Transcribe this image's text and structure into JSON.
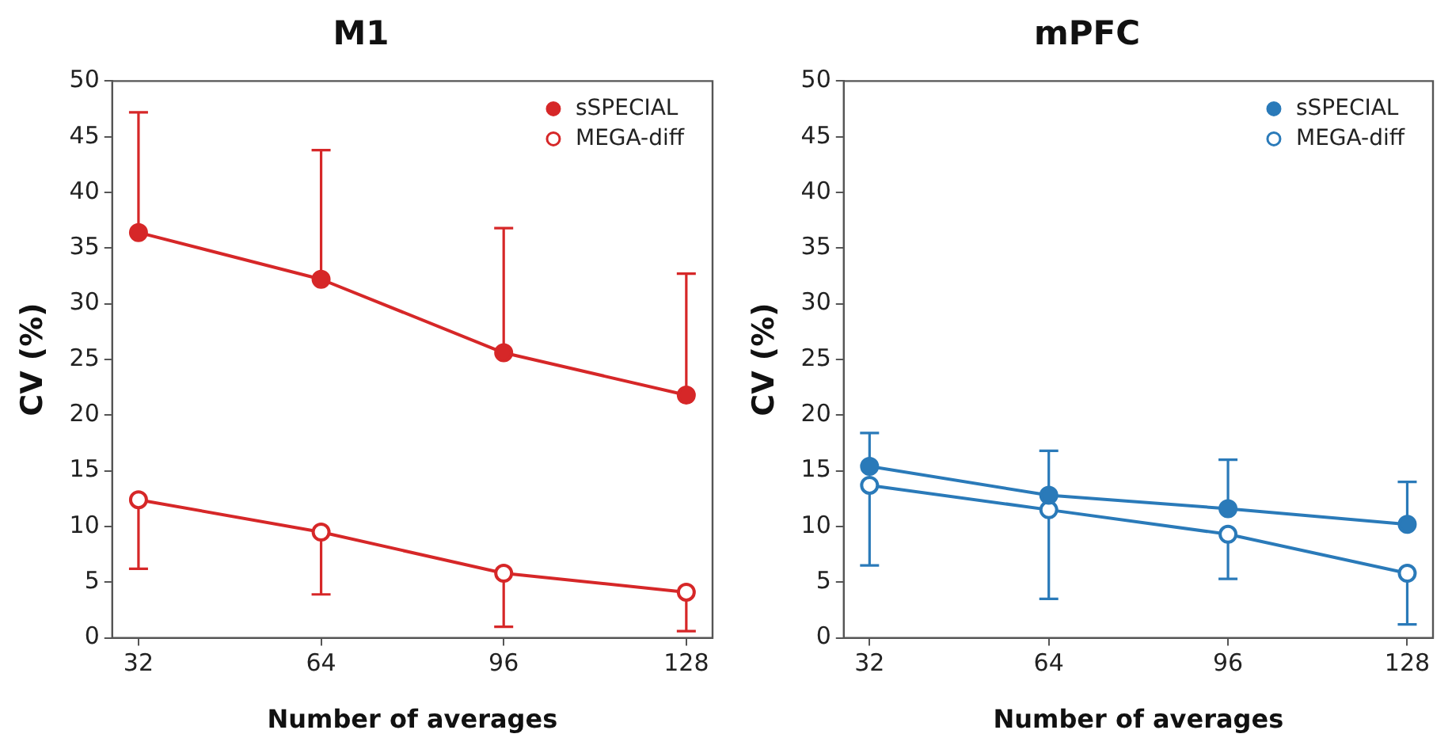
{
  "chart_data": [
    {
      "type": "line",
      "title": "M1",
      "xlabel": "Number of averages",
      "ylabel": "CV (%)",
      "x": [
        32,
        64,
        96,
        128
      ],
      "xlim": [
        27.4,
        132.6
      ],
      "xticks": [
        32,
        64,
        96,
        128
      ],
      "ylim": [
        0,
        50
      ],
      "yticks": [
        0,
        5,
        10,
        15,
        20,
        25,
        30,
        35,
        40,
        45,
        50
      ],
      "grid": false,
      "legend": "top right",
      "marker": "circle",
      "line_style": "solid",
      "series": [
        {
          "name": "sSPECIAL",
          "color": "#d62728",
          "values": [
            36.4,
            32.2,
            25.6,
            21.8
          ],
          "errors": [
            [
              36.4,
              47.2
            ],
            [
              32.2,
              43.8
            ],
            [
              25.6,
              36.8
            ],
            [
              21.8,
              32.7
            ]
          ]
        },
        {
          "name": "MEGA-diff",
          "color": "#d62728",
          "values": [
            12.4,
            9.5,
            5.8,
            4.1
          ],
          "errors": [
            [
              6.2,
              12.4
            ],
            [
              3.9,
              9.5
            ],
            [
              1.0,
              5.8
            ],
            [
              0.6,
              4.1
            ]
          ]
        }
      ]
    },
    {
      "type": "line",
      "title": "mPFC",
      "xlabel": "Number of averages",
      "ylabel": "CV (%)",
      "x": [
        32,
        64,
        96,
        128
      ],
      "xlim": [
        27.4,
        132.6
      ],
      "xticks": [
        32,
        64,
        96,
        128
      ],
      "ylim": [
        0,
        50
      ],
      "yticks": [
        0,
        5,
        10,
        15,
        20,
        25,
        30,
        35,
        40,
        45,
        50
      ],
      "grid": false,
      "legend": "top right",
      "marker": "circle",
      "line_style": "solid",
      "series": [
        {
          "name": "sSPECIAL",
          "color": "#2a7ab9",
          "values": [
            15.4,
            12.8,
            11.6,
            10.2
          ],
          "errors": [
            [
              15.4,
              18.4
            ],
            [
              12.8,
              16.8
            ],
            [
              11.6,
              16.0
            ],
            [
              10.2,
              14.0
            ]
          ]
        },
        {
          "name": "MEGA-diff",
          "color": "#2a7ab9",
          "values": [
            13.7,
            11.5,
            9.3,
            5.8
          ],
          "errors": [
            [
              6.5,
              13.7
            ],
            [
              3.5,
              11.5
            ],
            [
              5.3,
              9.3
            ],
            [
              1.2,
              5.8
            ]
          ]
        }
      ]
    }
  ]
}
